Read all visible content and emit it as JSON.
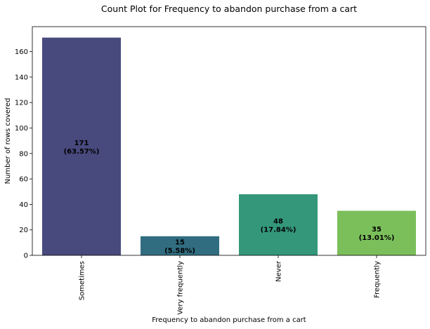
{
  "chart_data": {
    "type": "bar",
    "title": "Count Plot for Frequency to abandon purchase from a cart",
    "xlabel": "Frequency to abandon purchase from a cart",
    "ylabel": "Number of rows covered",
    "categories": [
      "Sometimes",
      "Very frequently",
      "Never",
      "Frequently"
    ],
    "values": [
      171,
      15,
      48,
      35
    ],
    "value_labels": [
      "171",
      "15",
      "48",
      "35"
    ],
    "percent_labels": [
      "(63.57%)",
      "(5.58%)",
      "(17.84%)",
      "(13.01%)"
    ],
    "ylim": [
      0,
      179.6
    ],
    "yticks": [
      0,
      20,
      40,
      60,
      80,
      100,
      120,
      140,
      160
    ],
    "colors": [
      "#48497c",
      "#316d80",
      "#34977a",
      "#7bbf5b"
    ],
    "grid": false,
    "legend": "none"
  }
}
